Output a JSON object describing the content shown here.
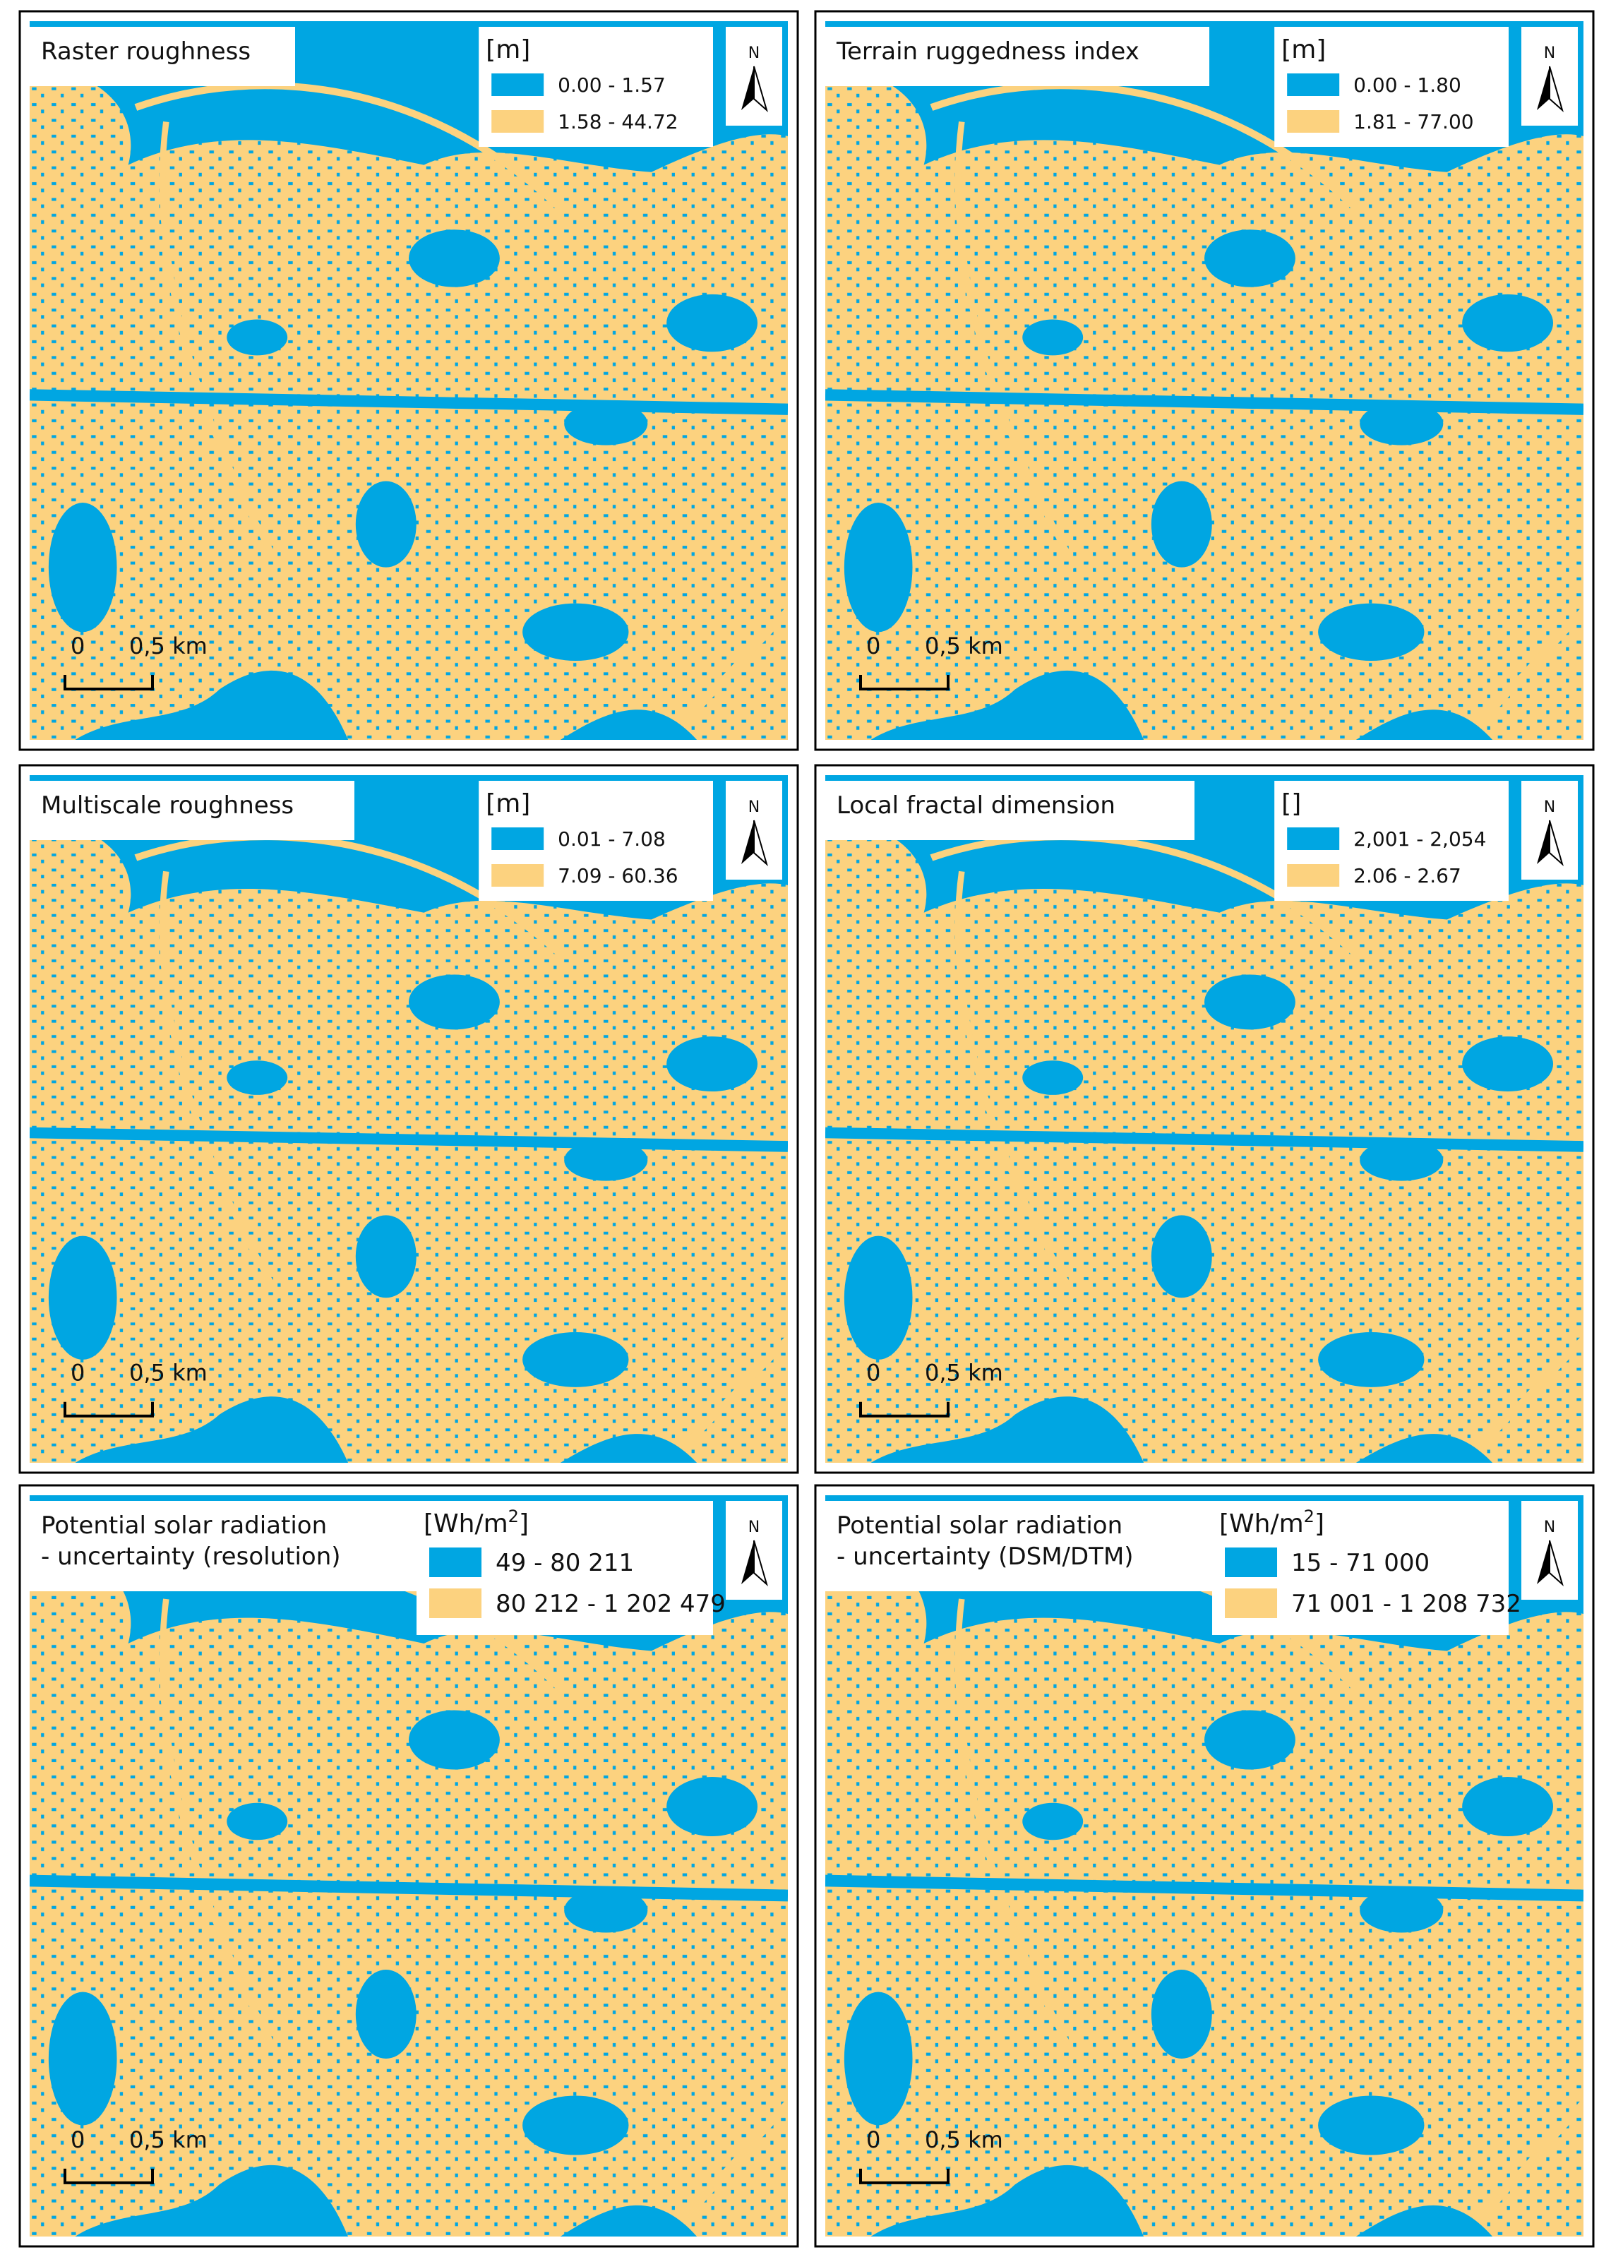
{
  "panels": [
    {
      "title": [
        "Raster roughness"
      ],
      "unit": {
        "main": "[m]"
      },
      "legend": [
        {
          "label": "0.00 - 1.57",
          "color": "#00a6e2"
        },
        {
          "label": "1.58 - 44.72",
          "color": "#fcd27f"
        }
      ],
      "north": "N",
      "scale": [
        "0",
        "0,5 km"
      ]
    },
    {
      "title": [
        "Terrain ruggedness index"
      ],
      "unit": {
        "main": "[m]"
      },
      "legend": [
        {
          "label": "0.00 - 1.80",
          "color": "#00a6e2"
        },
        {
          "label": "1.81 - 77.00",
          "color": "#fcd27f"
        }
      ],
      "north": "N",
      "scale": [
        "0",
        "0,5 km"
      ]
    },
    {
      "title": [
        "Multiscale roughness"
      ],
      "unit": {
        "main": "[m]"
      },
      "legend": [
        {
          "label": "0.01 - 7.08",
          "color": "#00a6e2"
        },
        {
          "label": "7.09 - 60.36",
          "color": "#fcd27f"
        }
      ],
      "north": "N",
      "scale": [
        "0",
        "0,5 km"
      ]
    },
    {
      "title": [
        "Local fractal dimension"
      ],
      "unit": {
        "main": "[]"
      },
      "legend": [
        {
          "label": "2,001 - 2,054",
          "color": "#00a6e2"
        },
        {
          "label": "2.06 - 2.67",
          "color": "#fcd27f"
        }
      ],
      "north": "N",
      "scale": [
        "0",
        "0,5 km"
      ]
    },
    {
      "title": [
        "Potential solar radiation",
        "- uncertainty (resolution)"
      ],
      "unit": {
        "main": "[Wh/m",
        "sup": "2",
        "end": "]"
      },
      "legend": [
        {
          "label": "49 - 80 211",
          "color": "#00a6e2"
        },
        {
          "label": "80 212 - 1 202 479",
          "color": "#fcd27f"
        }
      ],
      "north": "N",
      "scale": [
        "0",
        "0,5 km"
      ]
    },
    {
      "title": [
        "Potential solar radiation",
        "- uncertainty (DSM/DTM)"
      ],
      "unit": {
        "main": "[Wh/m",
        "sup": "2",
        "end": "]"
      },
      "legend": [
        {
          "label": "15 - 71 000",
          "color": "#00a6e2"
        },
        {
          "label": "71 001 - 1 208 732",
          "color": "#fcd27f"
        }
      ],
      "north": "N",
      "scale": [
        "0",
        "0,5 km"
      ]
    }
  ]
}
